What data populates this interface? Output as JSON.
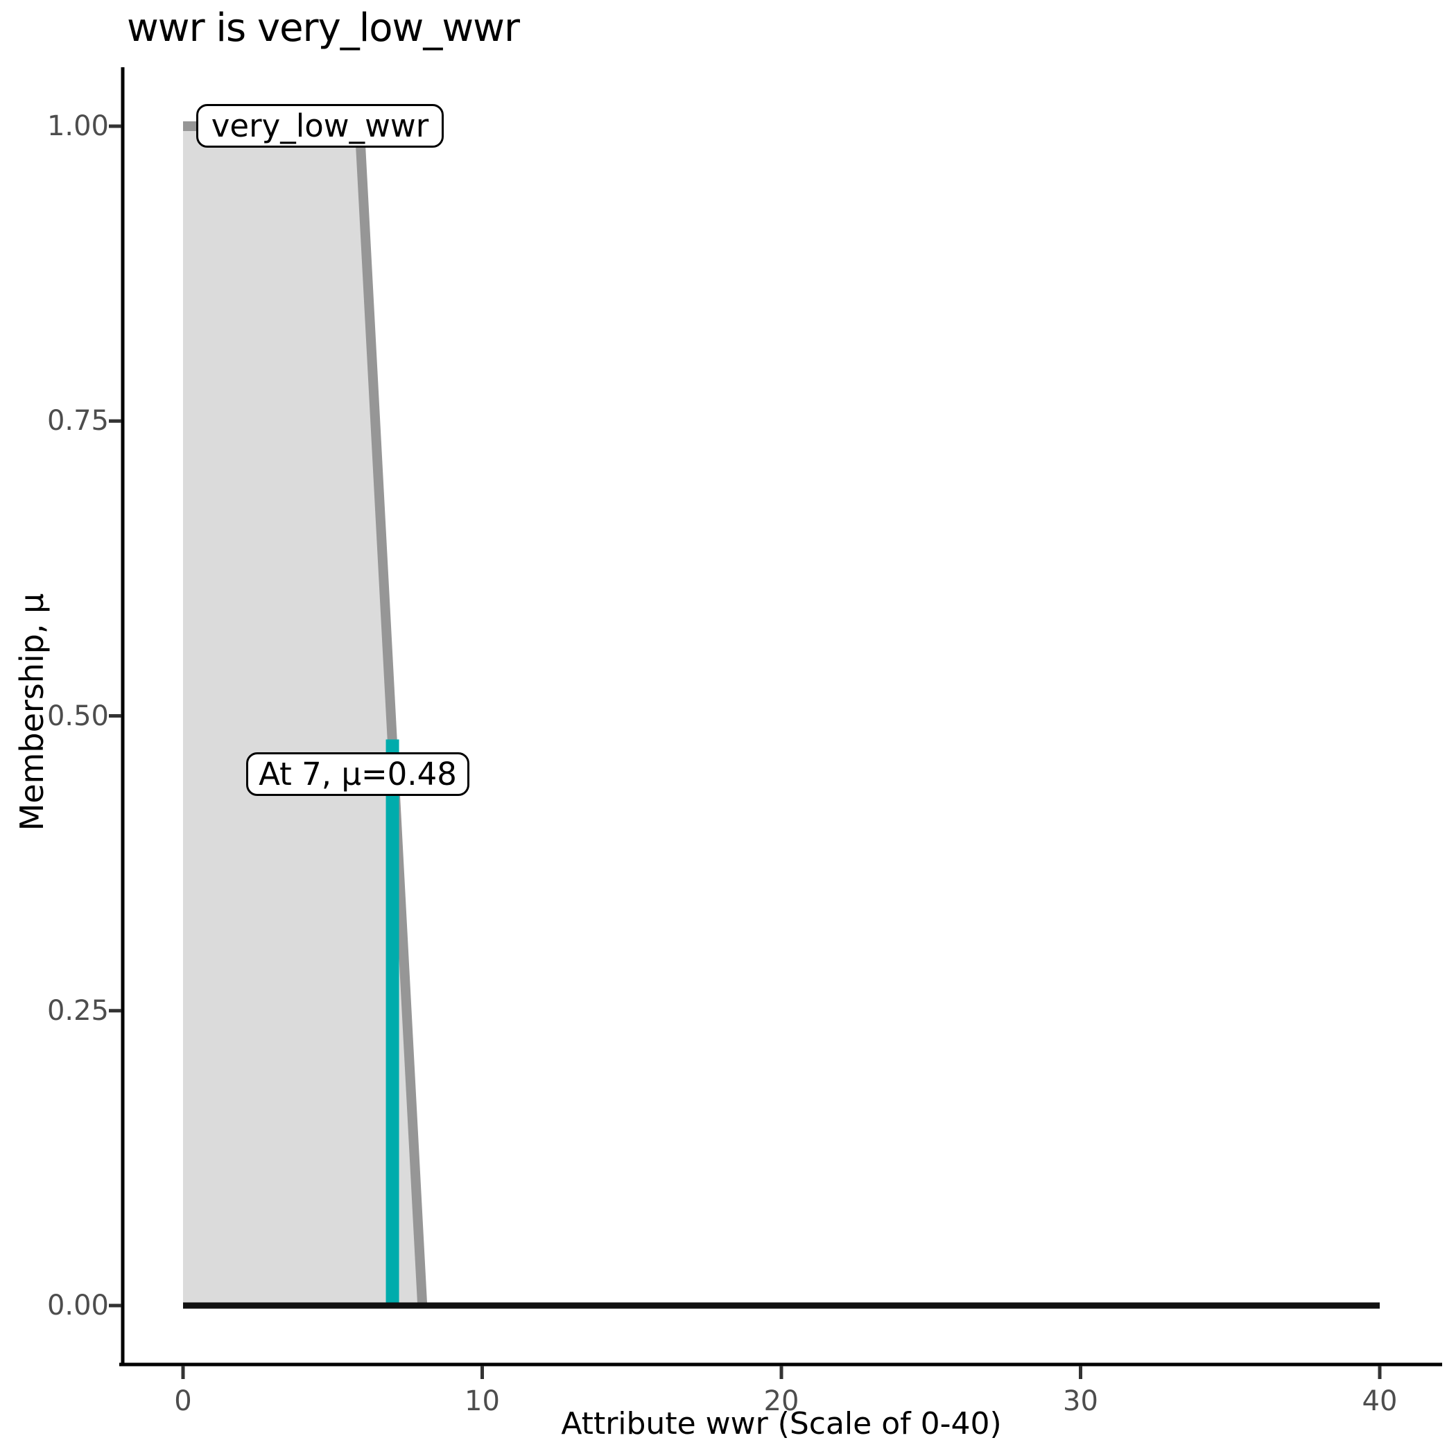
{
  "chart_data": {
    "type": "area",
    "title": "wwr is very_low_wwr",
    "xlabel": "Attribute wwr (Scale of 0-40)",
    "ylabel": "Membership, μ",
    "xlim": [
      0,
      42
    ],
    "ylim": [
      0,
      1.05
    ],
    "x_ticks": [
      0,
      10,
      20,
      30,
      40
    ],
    "x_tick_labels": [
      "0",
      "10",
      "20",
      "30",
      "40"
    ],
    "y_ticks": [
      0,
      0.25,
      0.5,
      0.75,
      1
    ],
    "y_tick_labels": [
      "0.00",
      "0.25",
      "0.50",
      "0.75",
      "1.00"
    ],
    "grid": false,
    "legend": false,
    "series": [
      {
        "name": "very_low_wwr",
        "shape": "membership-function",
        "points": [
          [
            0,
            1
          ],
          [
            5.9,
            1
          ],
          [
            8,
            0
          ]
        ],
        "fill_color": "#DBDBDB",
        "line_color": "#969696"
      }
    ],
    "baseline": {
      "y": 0,
      "from": 0,
      "to": 40,
      "color": "#111111"
    },
    "indicator": {
      "x": 7,
      "mu": 0.48,
      "color": "#00ACAC",
      "label": "At 7, μ=0.48"
    },
    "set_label": {
      "text": "very_low_wwr"
    },
    "style": {
      "axis_color": "#000000",
      "tick_color": "#333333",
      "tick_label_color": "#4D4D4D",
      "text_color": "#000000",
      "background": "#FFFFFF"
    }
  }
}
